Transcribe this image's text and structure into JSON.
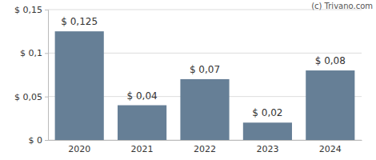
{
  "chart_data": {
    "type": "bar",
    "categories": [
      "2020",
      "2021",
      "2022",
      "2023",
      "2024"
    ],
    "values": [
      0.125,
      0.04,
      0.07,
      0.02,
      0.08
    ],
    "value_labels": [
      "$ 0,125",
      "$ 0,04",
      "$ 0,07",
      "$ 0,02",
      "$ 0,08"
    ],
    "color": "#667f96",
    "ylim": [
      0,
      0.15
    ],
    "yticks": [
      {
        "value": 0,
        "label": "$ 0"
      },
      {
        "value": 0.05,
        "label": "$ 0,05"
      },
      {
        "value": 0.1,
        "label": "$ 0,1"
      },
      {
        "value": 0.15,
        "label": "$ 0,15"
      }
    ],
    "grid": true,
    "data_labels": true,
    "annotations": [
      "(c) Trivano.com"
    ]
  }
}
